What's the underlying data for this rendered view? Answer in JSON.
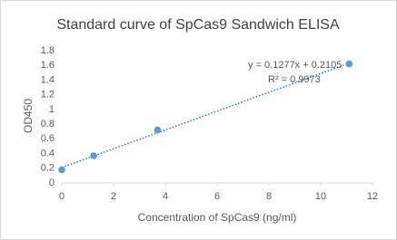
{
  "chart_data": {
    "type": "scatter",
    "title": "Standard curve of SpCas9 Sandwich ELISA",
    "x_label": "Concentration of SpCas9 (ng/ml)",
    "y_label": "OD450",
    "x": [
      0,
      1.23,
      3.7,
      11.1
    ],
    "values": [
      0.18,
      0.37,
      0.72,
      1.62
    ],
    "color": "#5b9bd5",
    "trendline": {
      "x": [
        0,
        11.1
      ],
      "values": [
        0.21,
        1.63
      ],
      "color": "#2e75b6"
    },
    "annotations": [
      "y = 0.1277x + 0.2105",
      "R² = 0.9973"
    ],
    "xlim": [
      0,
      12
    ],
    "xticks": [
      0,
      2,
      4,
      6,
      8,
      10,
      12
    ],
    "ylim": [
      0,
      1.8
    ],
    "yticks": [
      0,
      0.2,
      0.4,
      0.6,
      0.8,
      1,
      1.2,
      1.4,
      1.6,
      1.8
    ],
    "grid": false
  }
}
